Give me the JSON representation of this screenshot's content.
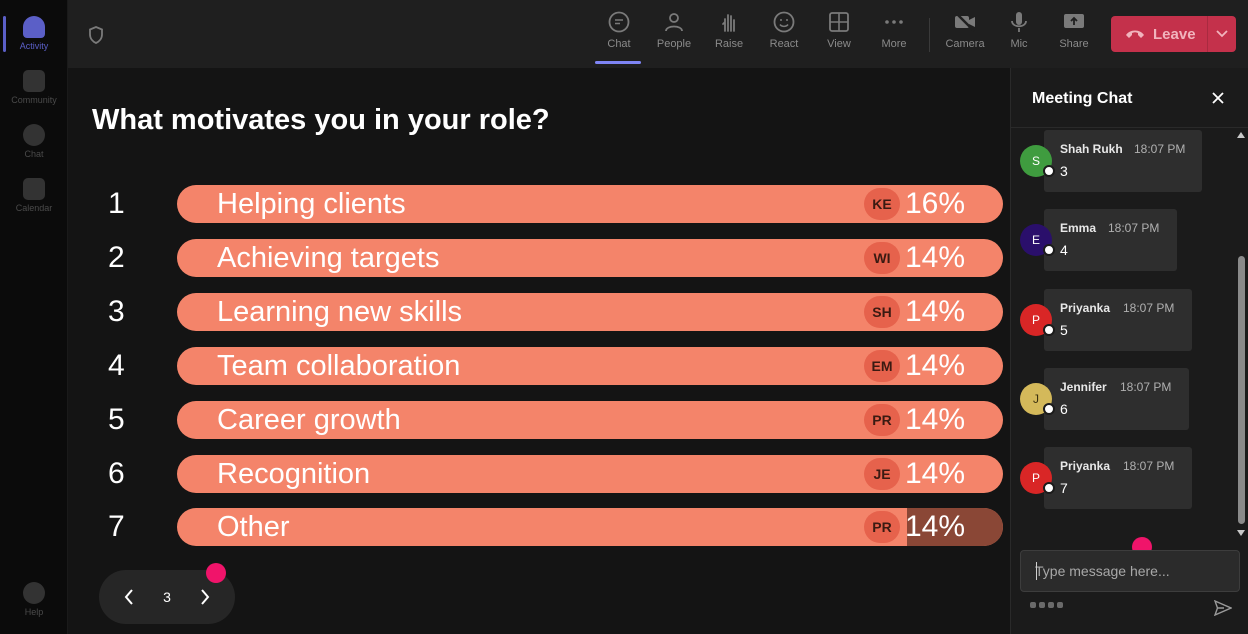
{
  "rail": {
    "items": [
      {
        "label": "Activity",
        "icon": "bell-icon",
        "active": true
      },
      {
        "label": "Community",
        "icon": "community-icon",
        "active": false
      },
      {
        "label": "Chat",
        "icon": "chat-icon",
        "active": false
      },
      {
        "label": "Calendar",
        "icon": "calendar-icon",
        "active": false
      }
    ],
    "help": {
      "label": "Help",
      "icon": "help-icon"
    }
  },
  "toolbar": {
    "buttons": [
      {
        "label": "Chat",
        "icon": "chat-icon",
        "active": true
      },
      {
        "label": "People",
        "icon": "people-icon",
        "active": false
      },
      {
        "label": "Raise",
        "icon": "raise-hand-icon",
        "active": false
      },
      {
        "label": "React",
        "icon": "react-smile-icon",
        "active": false
      },
      {
        "label": "View",
        "icon": "grid-view-icon",
        "active": false
      },
      {
        "label": "More",
        "icon": "more-dots-icon",
        "active": false
      }
    ],
    "media": [
      {
        "label": "Camera",
        "icon": "camera-off-icon"
      },
      {
        "label": "Mic",
        "icon": "mic-icon"
      },
      {
        "label": "Share",
        "icon": "share-screen-icon"
      }
    ],
    "leave_label": "Leave",
    "leave_color": "#c4314b"
  },
  "poll": {
    "question": "What motivates you in your role?",
    "accent_color": "#f4846a",
    "options": [
      {
        "rank": "1",
        "label": "Helping clients",
        "voter": "KE",
        "percent": "16%"
      },
      {
        "rank": "2",
        "label": "Achieving targets",
        "voter": "WI",
        "percent": "14%"
      },
      {
        "rank": "3",
        "label": "Learning new skills",
        "voter": "SH",
        "percent": "14%"
      },
      {
        "rank": "4",
        "label": "Team collaboration",
        "voter": "EM",
        "percent": "14%"
      },
      {
        "rank": "5",
        "label": "Career growth",
        "voter": "PR",
        "percent": "14%"
      },
      {
        "rank": "6",
        "label": "Recognition",
        "voter": "JE",
        "percent": "14%"
      },
      {
        "rank": "7",
        "label": "Other",
        "voter": "PR",
        "percent": "14%"
      }
    ],
    "page": "3"
  },
  "chat": {
    "title": "Meeting Chat",
    "messages": [
      {
        "initial": "S",
        "name": "Shah Rukh",
        "time": "18:07 PM",
        "text": "3",
        "avatar_color": "#3f9c3f"
      },
      {
        "initial": "E",
        "name": "Emma",
        "time": "18:07 PM",
        "text": "4",
        "avatar_color": "#2a0f6b"
      },
      {
        "initial": "P",
        "name": "Priyanka",
        "time": "18:07 PM",
        "text": "5",
        "avatar_color": "#d92626"
      },
      {
        "initial": "J",
        "name": "Jennifer",
        "time": "18:07 PM",
        "text": "6",
        "avatar_color": "#d4b95a"
      },
      {
        "initial": "P",
        "name": "Priyanka",
        "time": "18:07 PM",
        "text": "7",
        "avatar_color": "#d92626"
      }
    ],
    "input_placeholder": "Type message here..."
  }
}
